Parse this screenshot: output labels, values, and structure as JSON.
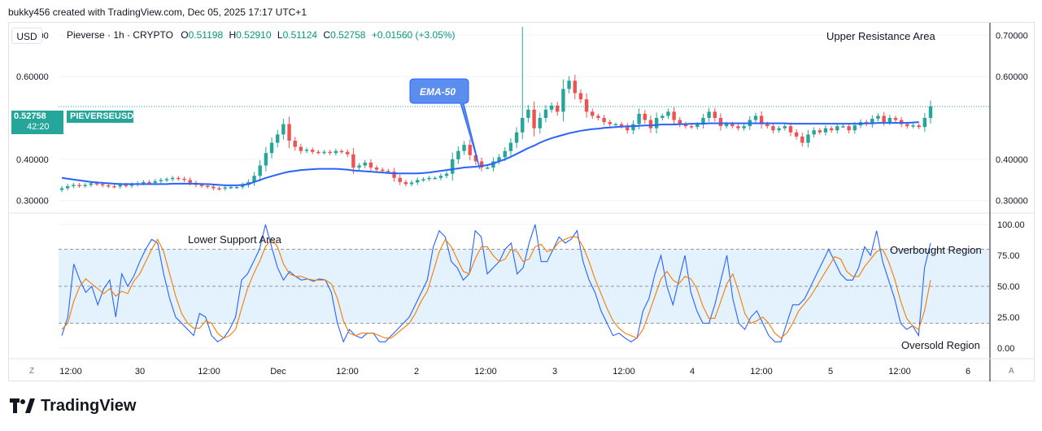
{
  "header": {
    "created_by": "bukky456 created with TradingView.com, Dec 05, 2025 17:17 UTC+1"
  },
  "toolbar": {
    "currency": "USD"
  },
  "legend": {
    "symbol": "Pieverse · 1h · CRYPTO",
    "o_label": "O",
    "o_value": "0.51198",
    "h_label": "H",
    "h_value": "0.52910",
    "l_label": "L",
    "l_value": "0.51124",
    "c_label": "C",
    "c_value": "0.52758",
    "change": "+0.01560 (+3.05%)"
  },
  "price_tag": {
    "price": "0.52758",
    "ticker": "PIEVERSEUSD",
    "countdown": "42:20"
  },
  "annotations": {
    "ema_label": "EMA-50",
    "upper": "Upper Resistance Area",
    "lower": "Lower Support Area",
    "overbought": "Overbought Region",
    "oversold": "Oversold Region"
  },
  "footer": {
    "brand": "TradingView",
    "tz_button": "Z",
    "auto_button": "A"
  },
  "colors": {
    "up": "#26a69a",
    "down": "#ef5350",
    "ema": "#2962ff",
    "k_line": "#2962ff",
    "d_line": "#f57c00",
    "band": "#e3f2fd"
  },
  "chart_data": [
    {
      "type": "candlestick",
      "symbol": "PIEVERSEUSD",
      "interval": "1h",
      "y_ticks": [
        "0.70000",
        "0.60000",
        "0.40000",
        "0.30000"
      ],
      "ylim": [
        0.27,
        0.73
      ],
      "x_ticks": [
        "12:00",
        "30",
        "12:00",
        "Dec",
        "12:00",
        "2",
        "12:00",
        "3",
        "12:00",
        "4",
        "12:00",
        "5",
        "12:00",
        "6"
      ],
      "closes": [
        0.33,
        0.335,
        0.338,
        0.336,
        0.338,
        0.342,
        0.34,
        0.337,
        0.335,
        0.334,
        0.338,
        0.336,
        0.339,
        0.342,
        0.345,
        0.343,
        0.347,
        0.35,
        0.352,
        0.355,
        0.353,
        0.35,
        0.343,
        0.338,
        0.336,
        0.334,
        0.33,
        0.329,
        0.332,
        0.333,
        0.333,
        0.338,
        0.345,
        0.36,
        0.385,
        0.415,
        0.44,
        0.46,
        0.485,
        0.445,
        0.43,
        0.42,
        0.423,
        0.418,
        0.416,
        0.418,
        0.415,
        0.42,
        0.418,
        0.412,
        0.38,
        0.385,
        0.392,
        0.38,
        0.375,
        0.372,
        0.37,
        0.355,
        0.345,
        0.34,
        0.344,
        0.35,
        0.352,
        0.355,
        0.355,
        0.36,
        0.365,
        0.4,
        0.42,
        0.435,
        0.41,
        0.395,
        0.38,
        0.38,
        0.395,
        0.405,
        0.42,
        0.44,
        0.465,
        0.5,
        0.52,
        0.475,
        0.5,
        0.52,
        0.53,
        0.515,
        0.57,
        0.59,
        0.56,
        0.545,
        0.515,
        0.505,
        0.5,
        0.49,
        0.485,
        0.485,
        0.48,
        0.47,
        0.485,
        0.51,
        0.495,
        0.475,
        0.5,
        0.505,
        0.515,
        0.495,
        0.485,
        0.48,
        0.478,
        0.484,
        0.5,
        0.515,
        0.5,
        0.48,
        0.485,
        0.48,
        0.475,
        0.48,
        0.495,
        0.505,
        0.485,
        0.48,
        0.47,
        0.475,
        0.48,
        0.465,
        0.455,
        0.44,
        0.46,
        0.47,
        0.465,
        0.475,
        0.47,
        0.48,
        0.48,
        0.47,
        0.482,
        0.49,
        0.485,
        0.498,
        0.505,
        0.49,
        0.5,
        0.495,
        0.485,
        0.48,
        0.482,
        0.478,
        0.5,
        0.528
      ],
      "ema50": [
        0.355,
        0.353,
        0.351,
        0.349,
        0.347,
        0.345,
        0.344,
        0.343,
        0.342,
        0.341,
        0.34,
        0.34,
        0.34,
        0.34,
        0.34,
        0.34,
        0.34,
        0.34,
        0.34,
        0.341,
        0.341,
        0.341,
        0.341,
        0.341,
        0.34,
        0.34,
        0.339,
        0.338,
        0.337,
        0.337,
        0.337,
        0.338,
        0.34,
        0.345,
        0.35,
        0.355,
        0.359,
        0.363,
        0.367,
        0.37,
        0.372,
        0.374,
        0.375,
        0.376,
        0.377,
        0.377,
        0.377,
        0.377,
        0.376,
        0.375,
        0.373,
        0.372,
        0.371,
        0.37,
        0.369,
        0.368,
        0.367,
        0.366,
        0.366,
        0.366,
        0.366,
        0.366,
        0.367,
        0.368,
        0.37,
        0.372,
        0.374,
        0.376,
        0.378,
        0.38,
        0.381,
        0.382,
        0.384,
        0.386,
        0.39,
        0.395,
        0.4,
        0.406,
        0.413,
        0.42,
        0.427,
        0.433,
        0.44,
        0.446,
        0.451,
        0.455,
        0.459,
        0.463,
        0.466,
        0.469,
        0.471,
        0.473,
        0.474,
        0.476,
        0.477,
        0.478,
        0.479,
        0.48,
        0.48,
        0.481,
        0.482,
        0.482,
        0.483,
        0.484,
        0.484,
        0.484,
        0.485,
        0.485,
        0.486,
        0.486,
        0.486,
        0.487,
        0.487,
        0.487,
        0.487,
        0.487,
        0.487,
        0.487,
        0.487,
        0.487,
        0.487,
        0.487,
        0.487,
        0.487,
        0.487,
        0.486,
        0.486,
        0.486,
        0.486,
        0.486,
        0.486,
        0.486,
        0.486,
        0.486,
        0.486,
        0.486,
        0.486,
        0.486,
        0.487,
        0.487,
        0.488,
        0.488,
        0.488,
        0.488,
        0.488,
        0.488,
        0.489,
        0.49
      ]
    },
    {
      "type": "line",
      "name": "stochastic",
      "y_ticks": [
        "100.00",
        "75.00",
        "50.00",
        "25.00",
        "0.00"
      ],
      "ylim": [
        -8,
        108
      ],
      "levels": [
        80,
        50,
        20
      ],
      "series": [
        {
          "name": "K",
          "values": [
            10,
            25,
            68,
            55,
            45,
            50,
            35,
            48,
            55,
            25,
            60,
            50,
            58,
            70,
            80,
            88,
            85,
            60,
            40,
            25,
            20,
            15,
            10,
            28,
            25,
            10,
            5,
            8,
            15,
            25,
            55,
            60,
            70,
            80,
            100,
            82,
            65,
            55,
            62,
            58,
            55,
            56,
            54,
            56,
            55,
            45,
            20,
            5,
            15,
            10,
            8,
            12,
            12,
            5,
            5,
            10,
            15,
            20,
            25,
            35,
            45,
            55,
            82,
            95,
            90,
            70,
            65,
            55,
            60,
            95,
            90,
            60,
            65,
            70,
            80,
            85,
            60,
            65,
            85,
            100,
            70,
            70,
            80,
            90,
            85,
            88,
            95,
            70,
            55,
            45,
            30,
            20,
            10,
            12,
            8,
            5,
            8,
            30,
            40,
            60,
            75,
            50,
            35,
            55,
            75,
            45,
            30,
            20,
            20,
            35,
            55,
            75,
            40,
            20,
            15,
            25,
            30,
            20,
            10,
            5,
            5,
            20,
            35,
            35,
            40,
            50,
            60,
            70,
            80,
            70,
            60,
            55,
            55,
            65,
            82,
            75,
            95,
            70,
            55,
            40,
            20,
            15,
            18,
            10,
            65,
            85
          ]
        },
        {
          "name": "D",
          "values": [
            15,
            20,
            38,
            50,
            56,
            52,
            48,
            44,
            48,
            42,
            46,
            44,
            54,
            60,
            70,
            80,
            88,
            78,
            60,
            42,
            28,
            20,
            16,
            16,
            22,
            20,
            12,
            8,
            10,
            15,
            32,
            48,
            60,
            70,
            82,
            88,
            82,
            68,
            60,
            58,
            58,
            56,
            55,
            55,
            55,
            52,
            40,
            22,
            12,
            10,
            12,
            12,
            12,
            10,
            8,
            8,
            12,
            16,
            20,
            28,
            38,
            46,
            62,
            78,
            88,
            82,
            72,
            62,
            60,
            72,
            82,
            82,
            75,
            70,
            72,
            80,
            78,
            70,
            72,
            82,
            84,
            78,
            80,
            86,
            88,
            90,
            90,
            82,
            70,
            56,
            44,
            32,
            22,
            16,
            12,
            10,
            8,
            15,
            28,
            42,
            56,
            62,
            55,
            52,
            58,
            56,
            48,
            34,
            24,
            24,
            38,
            52,
            60,
            45,
            28,
            20,
            22,
            25,
            20,
            12,
            8,
            12,
            20,
            30,
            36,
            42,
            50,
            58,
            66,
            74,
            72,
            62,
            58,
            58,
            66,
            72,
            78,
            80,
            70,
            56,
            38,
            24,
            18,
            15,
            30,
            55
          ]
        }
      ]
    }
  ]
}
